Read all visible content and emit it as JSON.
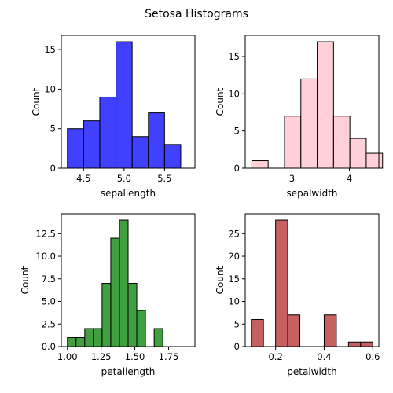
{
  "title": "Setosa Histograms",
  "chart_data": [
    {
      "type": "histogram",
      "xlabel": "sepallength",
      "ylabel": "Count",
      "color": "#0000ff",
      "xlim": [
        4.225,
        5.875
      ],
      "ylim": [
        0,
        16.8
      ],
      "xticks": [
        4.5,
        5.0,
        5.5
      ],
      "xtick_labels": [
        "4.5",
        "5.0",
        "5.5"
      ],
      "yticks": [
        0,
        5,
        10,
        15
      ],
      "ytick_labels": [
        "0",
        "5",
        "10",
        "15"
      ],
      "bins": [
        {
          "x0": 4.3,
          "x1": 4.5,
          "count": 5
        },
        {
          "x0": 4.5,
          "x1": 4.7,
          "count": 6
        },
        {
          "x0": 4.7,
          "x1": 4.9,
          "count": 9
        },
        {
          "x0": 4.9,
          "x1": 5.1,
          "count": 16
        },
        {
          "x0": 5.1,
          "x1": 5.3,
          "count": 4
        },
        {
          "x0": 5.3,
          "x1": 5.5,
          "count": 7
        },
        {
          "x0": 5.5,
          "x1": 5.7,
          "count": 3
        }
      ]
    },
    {
      "type": "histogram",
      "xlabel": "sepalwidth",
      "ylabel": "Count",
      "color": "#ffc0cb",
      "xlim": [
        2.185,
        4.515
      ],
      "ylim": [
        0,
        17.85
      ],
      "xticks": [
        3,
        4
      ],
      "xtick_labels": [
        "3",
        "4"
      ],
      "yticks": [
        0,
        5,
        10,
        15
      ],
      "ytick_labels": [
        "0",
        "5",
        "10",
        "15"
      ],
      "bins": [
        {
          "x0": 2.3,
          "x1": 2.585,
          "count": 1
        },
        {
          "x0": 2.585,
          "x1": 2.87,
          "count": 0
        },
        {
          "x0": 2.87,
          "x1": 3.155,
          "count": 7
        },
        {
          "x0": 3.155,
          "x1": 3.44,
          "count": 12
        },
        {
          "x0": 3.44,
          "x1": 3.725,
          "count": 17
        },
        {
          "x0": 3.725,
          "x1": 4.01,
          "count": 7
        },
        {
          "x0": 4.01,
          "x1": 4.295,
          "count": 4
        },
        {
          "x0": 4.295,
          "x1": 4.58,
          "count": 2
        }
      ]
    },
    {
      "type": "histogram",
      "xlabel": "petallength",
      "ylabel": "Count",
      "color": "#008000",
      "xlim": [
        0.955,
        1.945
      ],
      "ylim": [
        0,
        14.7
      ],
      "xticks": [
        1.0,
        1.25,
        1.5,
        1.75
      ],
      "xtick_labels": [
        "1.00",
        "1.25",
        "1.50",
        "1.75"
      ],
      "yticks": [
        0,
        2.5,
        5,
        7.5,
        10,
        12.5
      ],
      "ytick_labels": [
        "0.0",
        "2.5",
        "5.0",
        "7.5",
        "10.0",
        "12.5"
      ],
      "bins": [
        {
          "x0": 1.0,
          "x1": 1.0643,
          "count": 1
        },
        {
          "x0": 1.0643,
          "x1": 1.1286,
          "count": 1
        },
        {
          "x0": 1.1286,
          "x1": 1.1929,
          "count": 2
        },
        {
          "x0": 1.1929,
          "x1": 1.2571,
          "count": 2
        },
        {
          "x0": 1.2571,
          "x1": 1.3214,
          "count": 7
        },
        {
          "x0": 1.3214,
          "x1": 1.3857,
          "count": 12
        },
        {
          "x0": 1.3857,
          "x1": 1.45,
          "count": 14
        },
        {
          "x0": 1.45,
          "x1": 1.5143,
          "count": 7
        },
        {
          "x0": 1.5143,
          "x1": 1.5786,
          "count": 4
        },
        {
          "x0": 1.6429,
          "x1": 1.7071,
          "count": 2
        }
      ]
    },
    {
      "type": "histogram",
      "xlabel": "petalwidth",
      "ylabel": "Count",
      "color": "#b22222",
      "xlim": [
        0.075,
        0.625
      ],
      "ylim": [
        0,
        29.4
      ],
      "xticks": [
        0.2,
        0.4,
        0.6
      ],
      "xtick_labels": [
        "0.2",
        "0.4",
        "0.6"
      ],
      "yticks": [
        0,
        5,
        10,
        15,
        20,
        25
      ],
      "ytick_labels": [
        "0",
        "5",
        "10",
        "15",
        "20",
        "25"
      ],
      "bins": [
        {
          "x0": 0.1,
          "x1": 0.15,
          "count": 6
        },
        {
          "x0": 0.15,
          "x1": 0.2,
          "count": 0
        },
        {
          "x0": 0.2,
          "x1": 0.25,
          "count": 28
        },
        {
          "x0": 0.25,
          "x1": 0.3,
          "count": 7
        },
        {
          "x0": 0.3,
          "x1": 0.35,
          "count": 0
        },
        {
          "x0": 0.35,
          "x1": 0.4,
          "count": 0
        },
        {
          "x0": 0.4,
          "x1": 0.45,
          "count": 7
        },
        {
          "x0": 0.45,
          "x1": 0.5,
          "count": 0
        },
        {
          "x0": 0.5,
          "x1": 0.55,
          "count": 1
        },
        {
          "x0": 0.55,
          "x1": 0.6,
          "count": 1
        }
      ]
    }
  ]
}
